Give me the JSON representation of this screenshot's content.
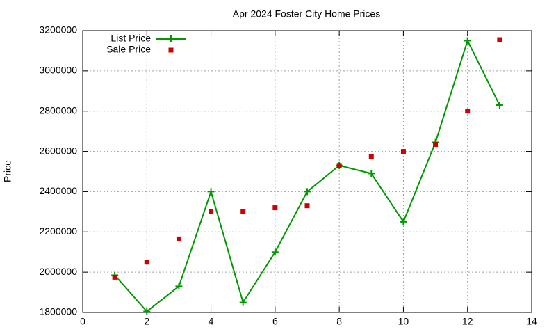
{
  "chart_data": {
    "type": "line",
    "title": "Apr 2024 Foster City Home Prices",
    "y_label": "Price",
    "x": [
      1,
      2,
      3,
      4,
      5,
      6,
      7,
      8,
      9,
      10,
      11,
      12,
      13
    ],
    "series": [
      {
        "name": "List Price",
        "color": "#009900",
        "mode": "lines+markers",
        "marker": "plus",
        "values": [
          1985000,
          1805000,
          1930000,
          2400000,
          1850000,
          2100000,
          2400000,
          2530000,
          2490000,
          2250000,
          2645000,
          3150000,
          2830000
        ]
      },
      {
        "name": "Sale Price",
        "color": "#cc0000",
        "mode": "markers",
        "marker": "square",
        "values": [
          1975000,
          2050000,
          2165000,
          2300000,
          2300000,
          2320000,
          2330000,
          2530000,
          2575000,
          2600000,
          2635000,
          2800000,
          3155000
        ]
      }
    ],
    "xlim": [
      0,
      14
    ],
    "xticks": [
      0,
      2,
      4,
      6,
      8,
      10,
      12,
      14
    ],
    "ylim": [
      1800000,
      3200000
    ],
    "yticks": [
      1800000,
      2000000,
      2200000,
      2400000,
      2600000,
      2800000,
      3000000,
      3200000
    ],
    "grid": true,
    "legend": "upper left"
  }
}
